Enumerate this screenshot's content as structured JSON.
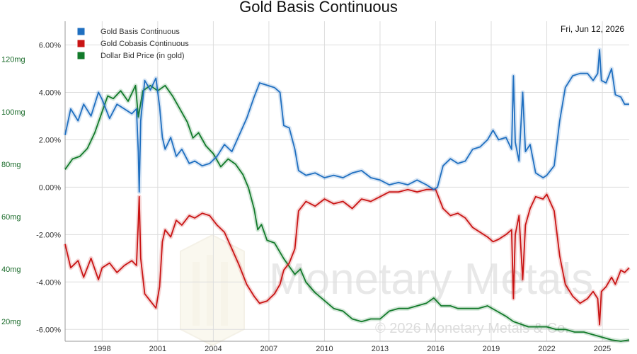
{
  "chart_data": {
    "type": "line",
    "title": "Gold Basis Continuous",
    "date_label": "Fri, Jun 12, 2026",
    "watermark": {
      "brand": "Monetary Metals",
      "copyright": "© 2026 Monetary Metals & Co."
    },
    "x_ticks": [
      "1998",
      "2001",
      "2004",
      "2007",
      "2010",
      "2013",
      "2016",
      "2019",
      "2022",
      "2025"
    ],
    "x_range": [
      1996.0,
      2026.45
    ],
    "y_right": {
      "ticks": [
        "6.00%",
        "4.00%",
        "2.00%",
        "0.00%",
        "-2.00%",
        "-4.00%",
        "-6.00%"
      ],
      "range": [
        -6.5,
        7.0
      ]
    },
    "y_left": {
      "ticks": [
        "120mg",
        "100mg",
        "80mg",
        "60mg",
        "40mg",
        "20mg"
      ],
      "range": [
        12.5,
        134.5
      ]
    },
    "grid": true,
    "legend_position": "top-left",
    "series": [
      {
        "name": "Gold Basis Continuous",
        "color": "#1f6fc0",
        "axis": "right",
        "points": [
          [
            1996.0,
            2.2
          ],
          [
            1996.3,
            3.3
          ],
          [
            1996.7,
            2.8
          ],
          [
            1997.0,
            3.5
          ],
          [
            1997.4,
            3.0
          ],
          [
            1997.8,
            4.0
          ],
          [
            1998.0,
            3.7
          ],
          [
            1998.4,
            2.9
          ],
          [
            1998.8,
            3.5
          ],
          [
            1999.2,
            3.3
          ],
          [
            1999.6,
            3.1
          ],
          [
            1999.85,
            3.3
          ],
          [
            1999.95,
            1.5
          ],
          [
            2000.0,
            -0.2
          ],
          [
            2000.08,
            2.8
          ],
          [
            2000.3,
            4.5
          ],
          [
            2000.6,
            4.1
          ],
          [
            2000.9,
            4.6
          ],
          [
            2001.1,
            3.4
          ],
          [
            2001.25,
            2.1
          ],
          [
            2001.4,
            1.6
          ],
          [
            2001.7,
            2.1
          ],
          [
            2002.0,
            1.3
          ],
          [
            2002.3,
            1.6
          ],
          [
            2002.7,
            1.0
          ],
          [
            2003.0,
            1.1
          ],
          [
            2003.4,
            0.9
          ],
          [
            2003.8,
            1.0
          ],
          [
            2004.2,
            1.3
          ],
          [
            2004.6,
            1.8
          ],
          [
            2005.0,
            1.5
          ],
          [
            2005.4,
            2.2
          ],
          [
            2005.8,
            2.9
          ],
          [
            2006.2,
            3.8
          ],
          [
            2006.5,
            4.4
          ],
          [
            2006.9,
            4.3
          ],
          [
            2007.3,
            4.2
          ],
          [
            2007.6,
            4.0
          ],
          [
            2007.8,
            2.6
          ],
          [
            2008.1,
            2.5
          ],
          [
            2008.4,
            1.6
          ],
          [
            2008.6,
            0.7
          ],
          [
            2009.0,
            0.5
          ],
          [
            2009.5,
            0.6
          ],
          [
            2010.0,
            0.4
          ],
          [
            2010.5,
            0.5
          ],
          [
            2011.0,
            0.4
          ],
          [
            2011.5,
            0.6
          ],
          [
            2012.0,
            0.7
          ],
          [
            2012.5,
            0.4
          ],
          [
            2013.0,
            0.3
          ],
          [
            2013.5,
            0.1
          ],
          [
            2014.0,
            0.2
          ],
          [
            2014.5,
            0.1
          ],
          [
            2015.0,
            0.3
          ],
          [
            2015.5,
            0.1
          ],
          [
            2015.9,
            -0.1
          ],
          [
            2016.1,
            0.0
          ],
          [
            2016.4,
            0.9
          ],
          [
            2016.8,
            1.2
          ],
          [
            2017.2,
            1.0
          ],
          [
            2017.6,
            1.1
          ],
          [
            2018.0,
            1.6
          ],
          [
            2018.4,
            1.7
          ],
          [
            2018.8,
            2.0
          ],
          [
            2019.1,
            2.4
          ],
          [
            2019.4,
            2.0
          ],
          [
            2019.8,
            2.1
          ],
          [
            2020.1,
            1.6
          ],
          [
            2020.2,
            4.7
          ],
          [
            2020.3,
            1.9
          ],
          [
            2020.5,
            1.1
          ],
          [
            2020.7,
            4.0
          ],
          [
            2020.85,
            1.5
          ],
          [
            2021.1,
            1.8
          ],
          [
            2021.4,
            0.6
          ],
          [
            2021.8,
            0.4
          ],
          [
            2022.0,
            0.5
          ],
          [
            2022.4,
            0.9
          ],
          [
            2022.7,
            2.8
          ],
          [
            2023.0,
            4.2
          ],
          [
            2023.4,
            4.7
          ],
          [
            2023.8,
            4.8
          ],
          [
            2024.2,
            4.8
          ],
          [
            2024.5,
            4.5
          ],
          [
            2024.75,
            4.8
          ],
          [
            2024.85,
            5.8
          ],
          [
            2024.95,
            4.5
          ],
          [
            2025.2,
            4.4
          ],
          [
            2025.5,
            5.0
          ],
          [
            2025.7,
            3.9
          ],
          [
            2026.0,
            3.8
          ],
          [
            2026.2,
            3.5
          ],
          [
            2026.45,
            3.5
          ]
        ]
      },
      {
        "name": "Gold Cobasis Continuous",
        "color": "#c91414",
        "axis": "right",
        "points": [
          [
            1996.0,
            -2.4
          ],
          [
            1996.3,
            -3.4
          ],
          [
            1996.7,
            -3.1
          ],
          [
            1997.0,
            -3.8
          ],
          [
            1997.4,
            -3.0
          ],
          [
            1997.8,
            -3.9
          ],
          [
            1998.0,
            -3.4
          ],
          [
            1998.4,
            -3.2
          ],
          [
            1998.8,
            -3.6
          ],
          [
            1999.2,
            -3.3
          ],
          [
            1999.6,
            -3.1
          ],
          [
            1999.85,
            -3.3
          ],
          [
            1999.95,
            -1.5
          ],
          [
            2000.0,
            -0.4
          ],
          [
            2000.08,
            -3.0
          ],
          [
            2000.3,
            -4.5
          ],
          [
            2000.6,
            -4.8
          ],
          [
            2000.9,
            -5.1
          ],
          [
            2001.1,
            -4.2
          ],
          [
            2001.25,
            -2.3
          ],
          [
            2001.4,
            -1.8
          ],
          [
            2001.7,
            -2.1
          ],
          [
            2002.0,
            -1.4
          ],
          [
            2002.3,
            -1.6
          ],
          [
            2002.7,
            -1.2
          ],
          [
            2003.0,
            -1.3
          ],
          [
            2003.4,
            -1.1
          ],
          [
            2003.8,
            -1.2
          ],
          [
            2004.2,
            -1.6
          ],
          [
            2004.6,
            -1.9
          ],
          [
            2005.0,
            -2.6
          ],
          [
            2005.4,
            -3.3
          ],
          [
            2005.8,
            -4.1
          ],
          [
            2006.2,
            -4.6
          ],
          [
            2006.5,
            -4.9
          ],
          [
            2006.9,
            -4.8
          ],
          [
            2007.3,
            -4.5
          ],
          [
            2007.6,
            -4.1
          ],
          [
            2007.8,
            -3.5
          ],
          [
            2008.1,
            -3.2
          ],
          [
            2008.4,
            -2.6
          ],
          [
            2008.6,
            -1.0
          ],
          [
            2009.0,
            -0.6
          ],
          [
            2009.5,
            -0.8
          ],
          [
            2010.0,
            -0.5
          ],
          [
            2010.5,
            -0.7
          ],
          [
            2011.0,
            -0.6
          ],
          [
            2011.5,
            -0.9
          ],
          [
            2012.0,
            -0.5
          ],
          [
            2012.5,
            -0.6
          ],
          [
            2013.0,
            -0.4
          ],
          [
            2013.5,
            -0.2
          ],
          [
            2014.0,
            -0.2
          ],
          [
            2014.5,
            -0.1
          ],
          [
            2015.0,
            -0.2
          ],
          [
            2015.5,
            -0.1
          ],
          [
            2016.0,
            -0.1
          ],
          [
            2016.4,
            -0.9
          ],
          [
            2016.8,
            -1.2
          ],
          [
            2017.2,
            -1.1
          ],
          [
            2017.6,
            -1.3
          ],
          [
            2018.0,
            -1.7
          ],
          [
            2018.4,
            -1.9
          ],
          [
            2018.8,
            -2.1
          ],
          [
            2019.1,
            -2.3
          ],
          [
            2019.4,
            -2.2
          ],
          [
            2019.8,
            -2.0
          ],
          [
            2020.1,
            -1.8
          ],
          [
            2020.2,
            -4.7
          ],
          [
            2020.3,
            -2.0
          ],
          [
            2020.5,
            -1.2
          ],
          [
            2020.7,
            -3.9
          ],
          [
            2020.85,
            -1.6
          ],
          [
            2021.1,
            -0.9
          ],
          [
            2021.4,
            -0.4
          ],
          [
            2021.8,
            -0.5
          ],
          [
            2022.0,
            -0.3
          ],
          [
            2022.4,
            -1.0
          ],
          [
            2022.7,
            -2.9
          ],
          [
            2023.0,
            -4.1
          ],
          [
            2023.4,
            -4.6
          ],
          [
            2023.8,
            -4.9
          ],
          [
            2024.2,
            -4.7
          ],
          [
            2024.5,
            -4.4
          ],
          [
            2024.75,
            -4.7
          ],
          [
            2024.85,
            -5.8
          ],
          [
            2024.95,
            -4.4
          ],
          [
            2025.2,
            -4.2
          ],
          [
            2025.5,
            -3.8
          ],
          [
            2025.7,
            -4.1
          ],
          [
            2026.0,
            -3.5
          ],
          [
            2026.2,
            -3.6
          ],
          [
            2026.45,
            -3.4
          ]
        ]
      },
      {
        "name": "Dollar Bid Price (in gold)",
        "color": "#127a2a",
        "axis": "left",
        "points": [
          [
            1996.0,
            78
          ],
          [
            1996.4,
            82
          ],
          [
            1996.8,
            83
          ],
          [
            1997.2,
            86
          ],
          [
            1997.6,
            92
          ],
          [
            1998.0,
            100
          ],
          [
            1998.3,
            106
          ],
          [
            1998.6,
            105
          ],
          [
            1999.0,
            108
          ],
          [
            1999.4,
            104
          ],
          [
            1999.8,
            110
          ],
          [
            1999.95,
            98
          ],
          [
            2000.2,
            108
          ],
          [
            2000.6,
            110
          ],
          [
            2001.0,
            108
          ],
          [
            2001.4,
            110
          ],
          [
            2001.8,
            106
          ],
          [
            2002.2,
            101
          ],
          [
            2002.6,
            96
          ],
          [
            2002.9,
            90
          ],
          [
            2003.2,
            92
          ],
          [
            2003.6,
            87
          ],
          [
            2004.0,
            84
          ],
          [
            2004.4,
            79
          ],
          [
            2004.8,
            82
          ],
          [
            2005.2,
            80
          ],
          [
            2005.6,
            76
          ],
          [
            2005.9,
            71
          ],
          [
            2006.2,
            63
          ],
          [
            2006.4,
            55
          ],
          [
            2006.6,
            57
          ],
          [
            2006.9,
            51
          ],
          [
            2007.3,
            50
          ],
          [
            2007.8,
            44
          ],
          [
            2008.1,
            41
          ],
          [
            2008.4,
            38
          ],
          [
            2008.7,
            40
          ],
          [
            2009.0,
            35
          ],
          [
            2009.5,
            31
          ],
          [
            2010.0,
            28
          ],
          [
            2010.5,
            25
          ],
          [
            2011.0,
            24
          ],
          [
            2011.5,
            21
          ],
          [
            2012.0,
            20
          ],
          [
            2012.5,
            21
          ],
          [
            2013.0,
            21
          ],
          [
            2013.5,
            24
          ],
          [
            2014.0,
            25
          ],
          [
            2014.5,
            25
          ],
          [
            2015.0,
            26
          ],
          [
            2015.5,
            27
          ],
          [
            2015.9,
            29
          ],
          [
            2016.3,
            26
          ],
          [
            2016.8,
            26
          ],
          [
            2017.2,
            25
          ],
          [
            2017.8,
            25
          ],
          [
            2018.3,
            25
          ],
          [
            2018.8,
            26
          ],
          [
            2019.3,
            24
          ],
          [
            2019.8,
            22
          ],
          [
            2020.2,
            20
          ],
          [
            2020.6,
            19
          ],
          [
            2021.0,
            18
          ],
          [
            2021.5,
            18
          ],
          [
            2022.0,
            18
          ],
          [
            2022.5,
            17
          ],
          [
            2023.0,
            17
          ],
          [
            2023.5,
            16
          ],
          [
            2024.0,
            16
          ],
          [
            2024.5,
            15
          ],
          [
            2025.0,
            14
          ],
          [
            2025.5,
            13
          ],
          [
            2026.0,
            12.5
          ],
          [
            2026.45,
            13
          ]
        ]
      }
    ]
  }
}
